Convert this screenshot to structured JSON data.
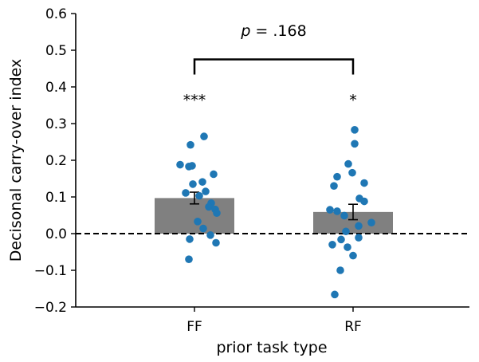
{
  "chart_data": {
    "type": "bar",
    "xlabel": "prior task type",
    "ylabel": "Decisonal carry-over index",
    "ylim": [
      -0.2,
      0.6
    ],
    "yticks": [
      "−0.2",
      "−0.1",
      "0.0",
      "0.1",
      "0.2",
      "0.3",
      "0.4",
      "0.5",
      "0.6"
    ],
    "ytick_values": [
      -0.2,
      -0.1,
      0.0,
      0.1,
      0.2,
      0.3,
      0.4,
      0.5,
      0.6
    ],
    "categories": [
      "FF",
      "RF"
    ],
    "values": [
      0.097,
      0.059
    ],
    "error": [
      0.016,
      0.021
    ],
    "reference_line": 0.0,
    "significance": [
      "***",
      "*"
    ],
    "comparison": {
      "p_symbol": "p",
      "p_value": " = .168",
      "bracket_y": 0.475
    },
    "points": [
      [
        0.265,
        0.242,
        0.188,
        0.183,
        0.185,
        0.162,
        0.141,
        0.135,
        0.115,
        0.111,
        0.103,
        0.083,
        0.073,
        0.066,
        0.056,
        0.033,
        0.014,
        -0.004,
        -0.015,
        -0.025,
        -0.07
      ],
      [
        0.283,
        0.245,
        0.19,
        0.166,
        0.155,
        0.138,
        0.13,
        0.096,
        0.088,
        0.065,
        0.061,
        0.049,
        0.03,
        0.021,
        0.006,
        -0.011,
        -0.016,
        -0.03,
        -0.037,
        -0.06,
        -0.1,
        -0.166
      ]
    ],
    "colors": {
      "bar": "#808080",
      "point": "#1f77b4",
      "axis": "#000000"
    }
  }
}
